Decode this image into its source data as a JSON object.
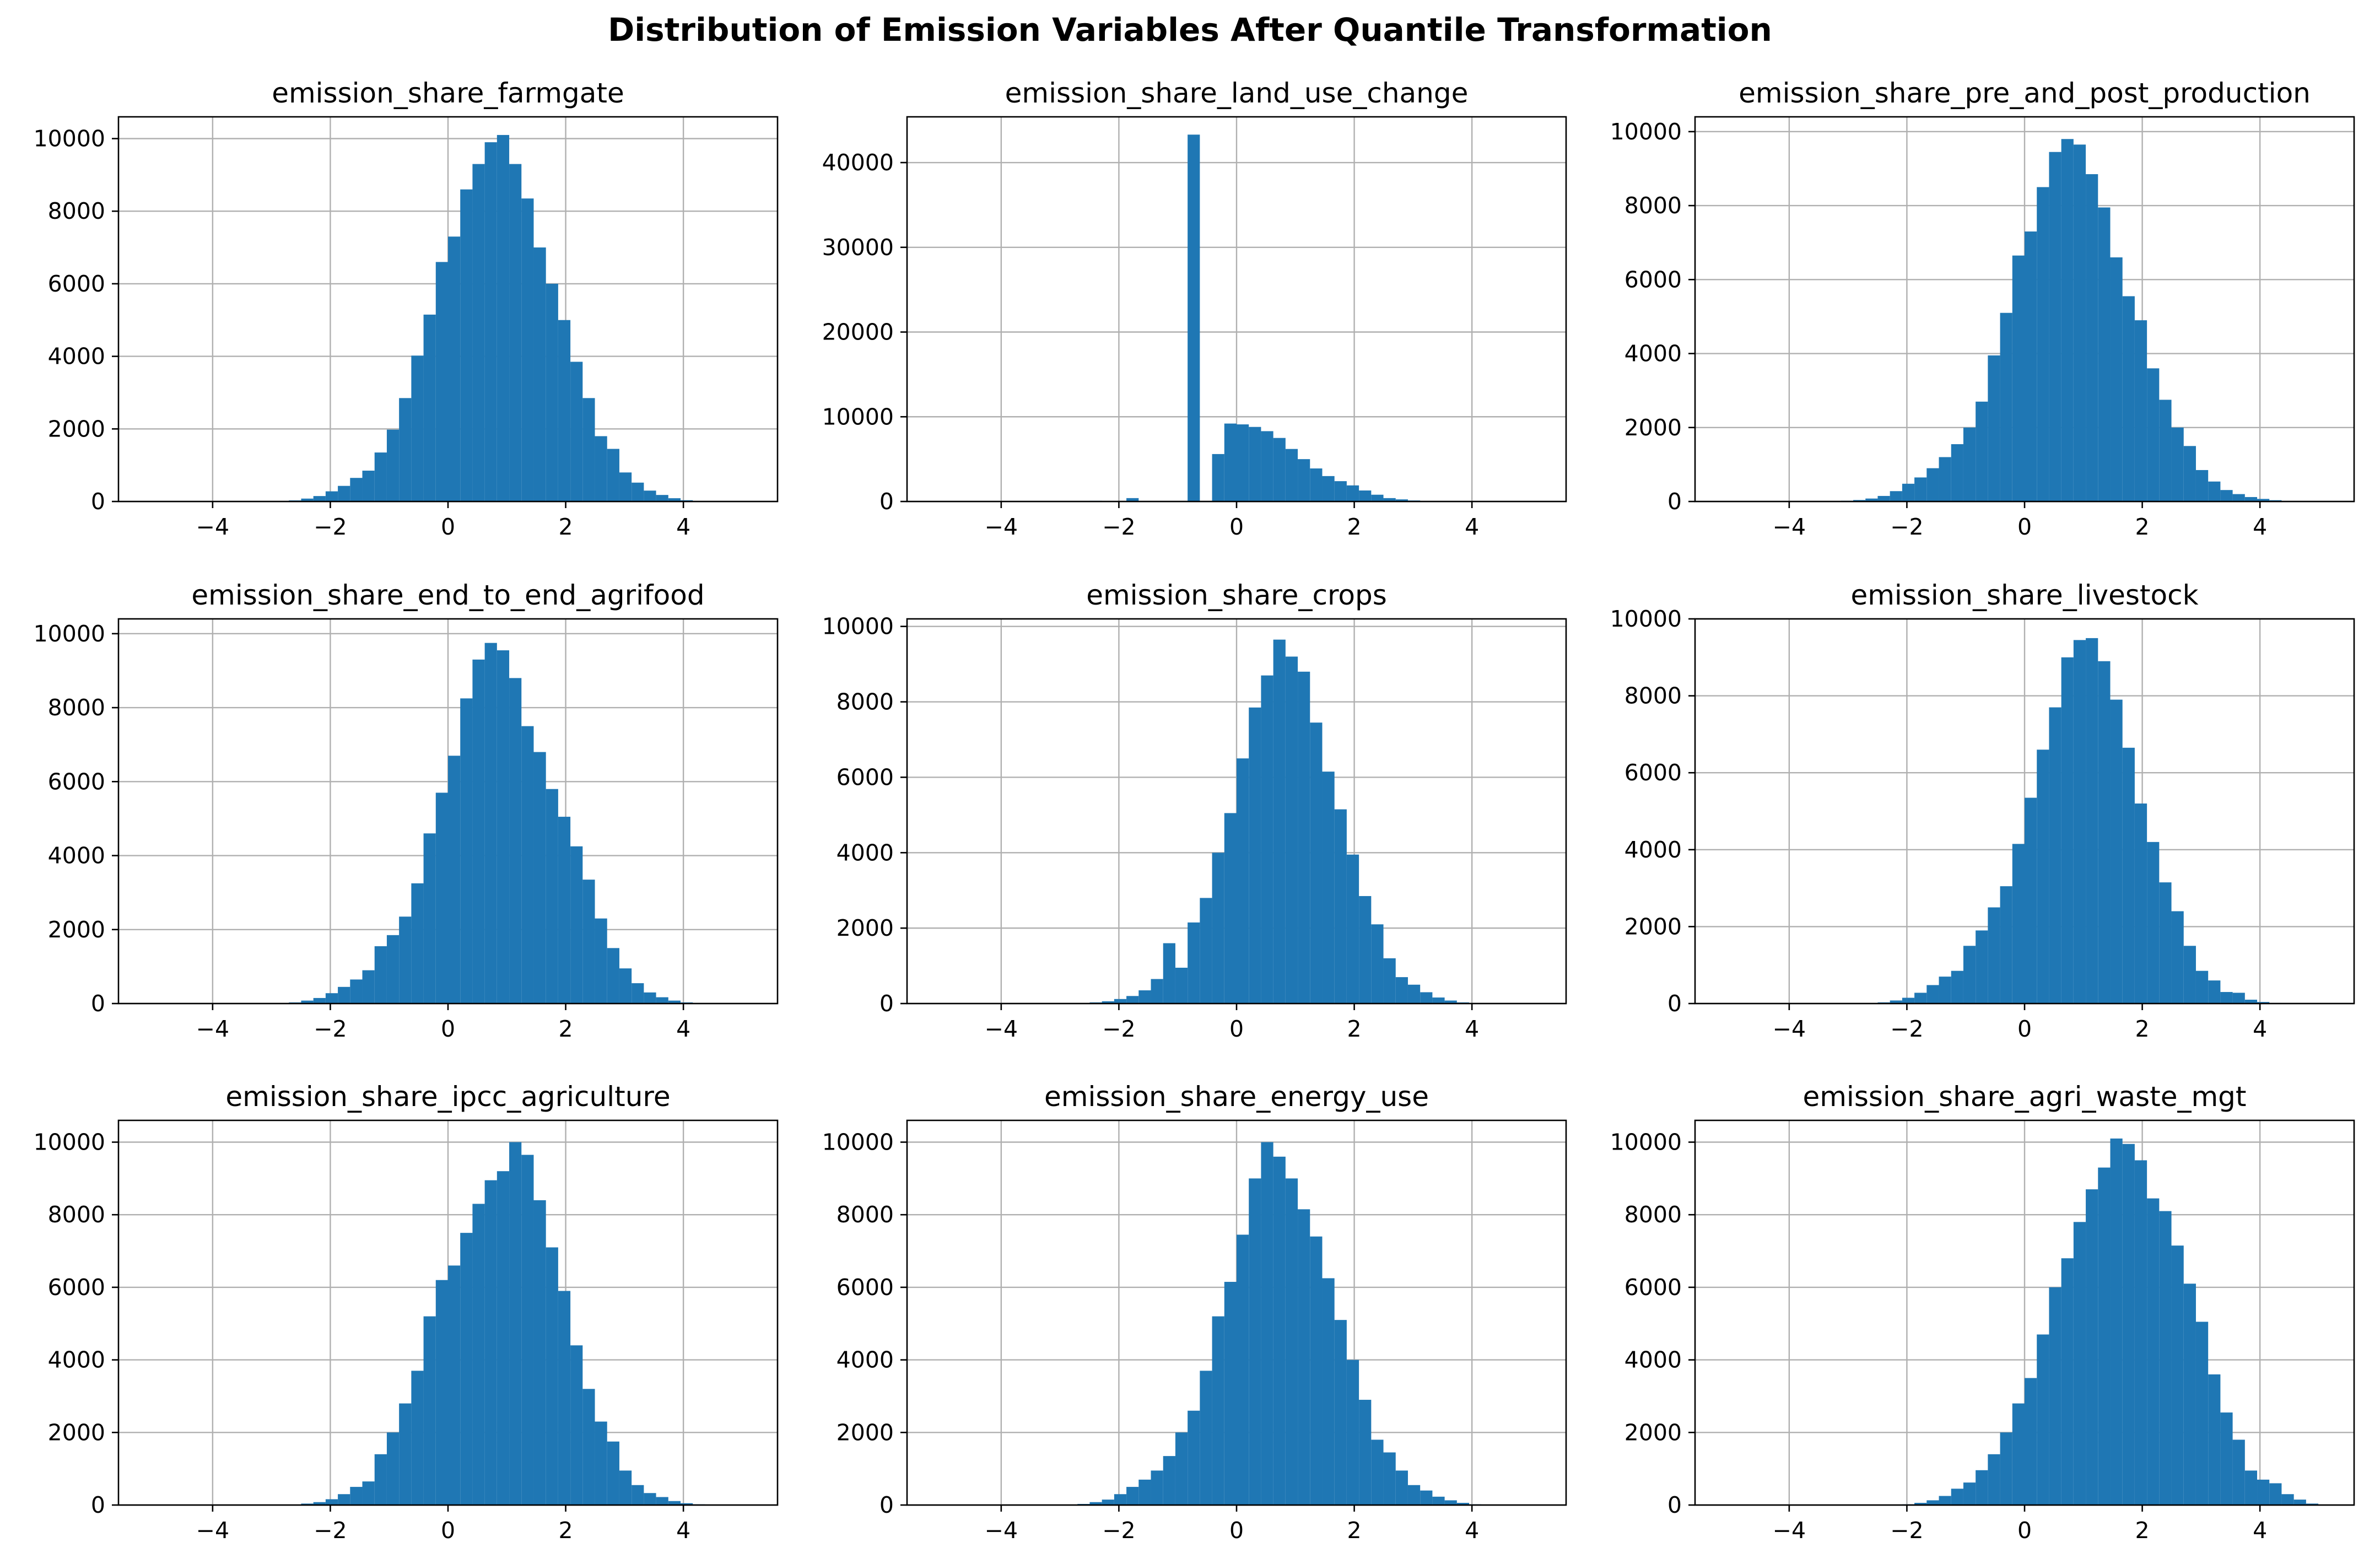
{
  "figure": {
    "title": "Distribution of Emission Variables After Quantile Transformation"
  },
  "style": {
    "bar_color": "#1f77b4",
    "grid_color": "#b0b0b0",
    "axis_color": "#000000"
  },
  "chart_data": [
    {
      "type": "bar",
      "title": "emission_share_farmgate",
      "xlim": [
        -5.6,
        5.6
      ],
      "ylim": [
        0,
        10600
      ],
      "xticks": [
        -4,
        -2,
        0,
        2,
        4
      ],
      "xtick_labels": [
        "−4",
        "−2",
        "0",
        "2",
        "4"
      ],
      "yticks": [
        0,
        2000,
        4000,
        6000,
        8000,
        10000
      ],
      "ytick_labels": [
        "0",
        "2000",
        "4000",
        "6000",
        "8000",
        "10000"
      ],
      "grid": true,
      "bin_range": [
        -5.2,
        5.2
      ],
      "values": [
        5,
        0,
        0,
        0,
        0,
        0,
        0,
        0,
        0,
        0,
        0,
        0,
        30,
        80,
        150,
        280,
        430,
        650,
        850,
        1350,
        1980,
        2850,
        4020,
        5150,
        6600,
        7300,
        8600,
        9300,
        9900,
        10100,
        9300,
        8350,
        7000,
        6000,
        5000,
        3850,
        2850,
        1800,
        1450,
        800,
        520,
        300,
        180,
        90,
        35,
        12,
        0,
        0,
        0,
        0
      ]
    },
    {
      "type": "bar",
      "title": "emission_share_land_use_change",
      "xlim": [
        -5.6,
        5.6
      ],
      "ylim": [
        0,
        45400
      ],
      "xticks": [
        -4,
        -2,
        0,
        2,
        4
      ],
      "xtick_labels": [
        "−4",
        "−2",
        "0",
        "2",
        "4"
      ],
      "yticks": [
        0,
        10000,
        20000,
        30000,
        40000
      ],
      "ytick_labels": [
        "0",
        "10000",
        "20000",
        "30000",
        "40000"
      ],
      "grid": true,
      "bin_range": [
        -5.2,
        5.2
      ],
      "values": [
        0,
        0,
        0,
        0,
        0,
        0,
        0,
        0,
        0,
        0,
        0,
        0,
        0,
        80,
        0,
        0,
        400,
        0,
        0,
        0,
        0,
        43300,
        0,
        5600,
        9200,
        9100,
        8800,
        8300,
        7500,
        6200,
        5000,
        3900,
        3000,
        2400,
        1900,
        1300,
        800,
        400,
        250,
        120,
        60,
        30,
        15,
        5,
        0,
        0,
        0,
        0,
        0,
        0
      ]
    },
    {
      "type": "bar",
      "title": "emission_share_pre_and_post_production",
      "xlim": [
        -5.6,
        5.6
      ],
      "ylim": [
        0,
        10400
      ],
      "xticks": [
        -4,
        -2,
        0,
        2,
        4
      ],
      "xtick_labels": [
        "−4",
        "−2",
        "0",
        "2",
        "4"
      ],
      "yticks": [
        0,
        2000,
        4000,
        6000,
        8000,
        10000
      ],
      "ytick_labels": [
        "0",
        "2000",
        "4000",
        "6000",
        "8000",
        "10000"
      ],
      "grid": true,
      "bin_range": [
        -5.2,
        5.2
      ],
      "values": [
        5,
        0,
        0,
        0,
        0,
        0,
        0,
        0,
        0,
        0,
        20,
        40,
        80,
        150,
        280,
        480,
        650,
        900,
        1200,
        1550,
        2000,
        2700,
        3950,
        5100,
        6650,
        7300,
        8500,
        9450,
        9800,
        9650,
        8850,
        7950,
        6600,
        5550,
        4900,
        3600,
        2750,
        2000,
        1500,
        850,
        540,
        310,
        200,
        120,
        70,
        35,
        15,
        5,
        0,
        0
      ]
    },
    {
      "type": "bar",
      "title": "emission_share_end_to_end_agrifood",
      "xlim": [
        -5.6,
        5.6
      ],
      "ylim": [
        0,
        10400
      ],
      "xticks": [
        -4,
        -2,
        0,
        2,
        4
      ],
      "xtick_labels": [
        "−4",
        "−2",
        "0",
        "2",
        "4"
      ],
      "yticks": [
        0,
        2000,
        4000,
        6000,
        8000,
        10000
      ],
      "ytick_labels": [
        "0",
        "2000",
        "4000",
        "6000",
        "8000",
        "10000"
      ],
      "grid": true,
      "bin_range": [
        -5.2,
        5.2
      ],
      "values": [
        5,
        0,
        0,
        0,
        0,
        0,
        0,
        0,
        0,
        0,
        0,
        0,
        30,
        80,
        150,
        280,
        450,
        650,
        900,
        1550,
        1850,
        2350,
        3250,
        4600,
        5700,
        6700,
        8250,
        9300,
        9750,
        9550,
        8800,
        7500,
        6800,
        5800,
        5050,
        4250,
        3350,
        2300,
        1500,
        950,
        550,
        300,
        170,
        80,
        30,
        10,
        0,
        0,
        0,
        0
      ]
    },
    {
      "type": "bar",
      "title": "emission_share_crops",
      "xlim": [
        -5.6,
        5.6
      ],
      "ylim": [
        0,
        10200
      ],
      "xticks": [
        -4,
        -2,
        0,
        2,
        4
      ],
      "xtick_labels": [
        "−4",
        "−2",
        "0",
        "2",
        "4"
      ],
      "yticks": [
        0,
        2000,
        4000,
        6000,
        8000,
        10000
      ],
      "ytick_labels": [
        "0",
        "2000",
        "4000",
        "6000",
        "8000",
        "10000"
      ],
      "grid": true,
      "bin_range": [
        -5.2,
        5.2
      ],
      "values": [
        5,
        0,
        0,
        0,
        0,
        0,
        0,
        0,
        0,
        0,
        0,
        0,
        10,
        30,
        60,
        120,
        200,
        350,
        650,
        1600,
        950,
        2150,
        2800,
        4000,
        5050,
        6500,
        7850,
        8700,
        9650,
        9200,
        8800,
        7450,
        6150,
        5150,
        3950,
        2850,
        2100,
        1200,
        700,
        500,
        300,
        160,
        80,
        30,
        10,
        0,
        0,
        0,
        0,
        0
      ]
    },
    {
      "type": "bar",
      "title": "emission_share_livestock",
      "xlim": [
        -5.6,
        5.6
      ],
      "ylim": [
        0,
        10000
      ],
      "xticks": [
        -4,
        -2,
        0,
        2,
        4
      ],
      "xtick_labels": [
        "−4",
        "−2",
        "0",
        "2",
        "4"
      ],
      "yticks": [
        0,
        2000,
        4000,
        6000,
        8000,
        10000
      ],
      "ytick_labels": [
        "0",
        "2000",
        "4000",
        "6000",
        "8000",
        "10000"
      ],
      "grid": true,
      "bin_range": [
        -5.2,
        5.2
      ],
      "values": [
        0,
        0,
        0,
        0,
        0,
        0,
        0,
        0,
        0,
        0,
        0,
        0,
        0,
        30,
        80,
        150,
        280,
        480,
        700,
        850,
        1500,
        1900,
        2500,
        3050,
        4150,
        5350,
        6600,
        7700,
        9000,
        9450,
        9500,
        8900,
        7900,
        6650,
        5200,
        4200,
        3150,
        2400,
        1500,
        850,
        600,
        300,
        280,
        100,
        40,
        15,
        0,
        0,
        0,
        0
      ]
    },
    {
      "type": "bar",
      "title": "emission_share_ipcc_agriculture",
      "xlim": [
        -5.6,
        5.6
      ],
      "ylim": [
        0,
        10600
      ],
      "xticks": [
        -4,
        -2,
        0,
        2,
        4
      ],
      "xtick_labels": [
        "−4",
        "−2",
        "0",
        "2",
        "4"
      ],
      "yticks": [
        0,
        2000,
        4000,
        6000,
        8000,
        10000
      ],
      "ytick_labels": [
        "0",
        "2000",
        "4000",
        "6000",
        "8000",
        "10000"
      ],
      "grid": true,
      "bin_range": [
        -5.2,
        5.2
      ],
      "values": [
        5,
        0,
        0,
        0,
        0,
        0,
        0,
        0,
        0,
        0,
        0,
        0,
        10,
        40,
        80,
        160,
        300,
        500,
        650,
        1400,
        2000,
        2800,
        3700,
        5200,
        6200,
        6600,
        7500,
        8300,
        8950,
        9200,
        10000,
        9650,
        8400,
        7100,
        5900,
        4400,
        3200,
        2300,
        1750,
        950,
        550,
        330,
        220,
        110,
        50,
        20,
        0,
        0,
        0,
        0
      ]
    },
    {
      "type": "bar",
      "title": "emission_share_energy_use",
      "xlim": [
        -5.6,
        5.6
      ],
      "ylim": [
        0,
        10600
      ],
      "xticks": [
        -4,
        -2,
        0,
        2,
        4
      ],
      "xtick_labels": [
        "−4",
        "−2",
        "0",
        "2",
        "4"
      ],
      "yticks": [
        0,
        2000,
        4000,
        6000,
        8000,
        10000
      ],
      "ytick_labels": [
        "0",
        "2000",
        "4000",
        "6000",
        "8000",
        "10000"
      ],
      "grid": true,
      "bin_range": [
        -5.2,
        5.2
      ],
      "values": [
        5,
        0,
        0,
        0,
        0,
        0,
        0,
        0,
        0,
        0,
        0,
        10,
        30,
        80,
        150,
        300,
        500,
        700,
        950,
        1350,
        2000,
        2600,
        3700,
        5200,
        6150,
        7450,
        9000,
        10000,
        9600,
        9000,
        8150,
        7400,
        6250,
        5100,
        4000,
        2900,
        1800,
        1450,
        950,
        550,
        400,
        230,
        130,
        60,
        20,
        5,
        0,
        0,
        0,
        0
      ]
    },
    {
      "type": "bar",
      "title": "emission_share_agri_waste_mgt",
      "xlim": [
        -5.6,
        5.6
      ],
      "ylim": [
        0,
        10600
      ],
      "xticks": [
        -4,
        -2,
        0,
        2,
        4
      ],
      "xtick_labels": [
        "−4",
        "−2",
        "0",
        "2",
        "4"
      ],
      "yticks": [
        0,
        2000,
        4000,
        6000,
        8000,
        10000
      ],
      "ytick_labels": [
        "0",
        "2000",
        "4000",
        "6000",
        "8000",
        "10000"
      ],
      "grid": true,
      "bin_range": [
        -5.2,
        5.2
      ],
      "values": [
        0,
        0,
        0,
        0,
        0,
        0,
        0,
        0,
        0,
        0,
        0,
        0,
        0,
        0,
        0,
        20,
        60,
        130,
        250,
        450,
        620,
        960,
        1400,
        2000,
        2800,
        3500,
        4700,
        6000,
        6800,
        7800,
        8700,
        9300,
        10100,
        9950,
        9500,
        8450,
        8100,
        7150,
        6100,
        5050,
        3600,
        2550,
        1800,
        950,
        700,
        600,
        300,
        150,
        40,
        0
      ]
    }
  ]
}
